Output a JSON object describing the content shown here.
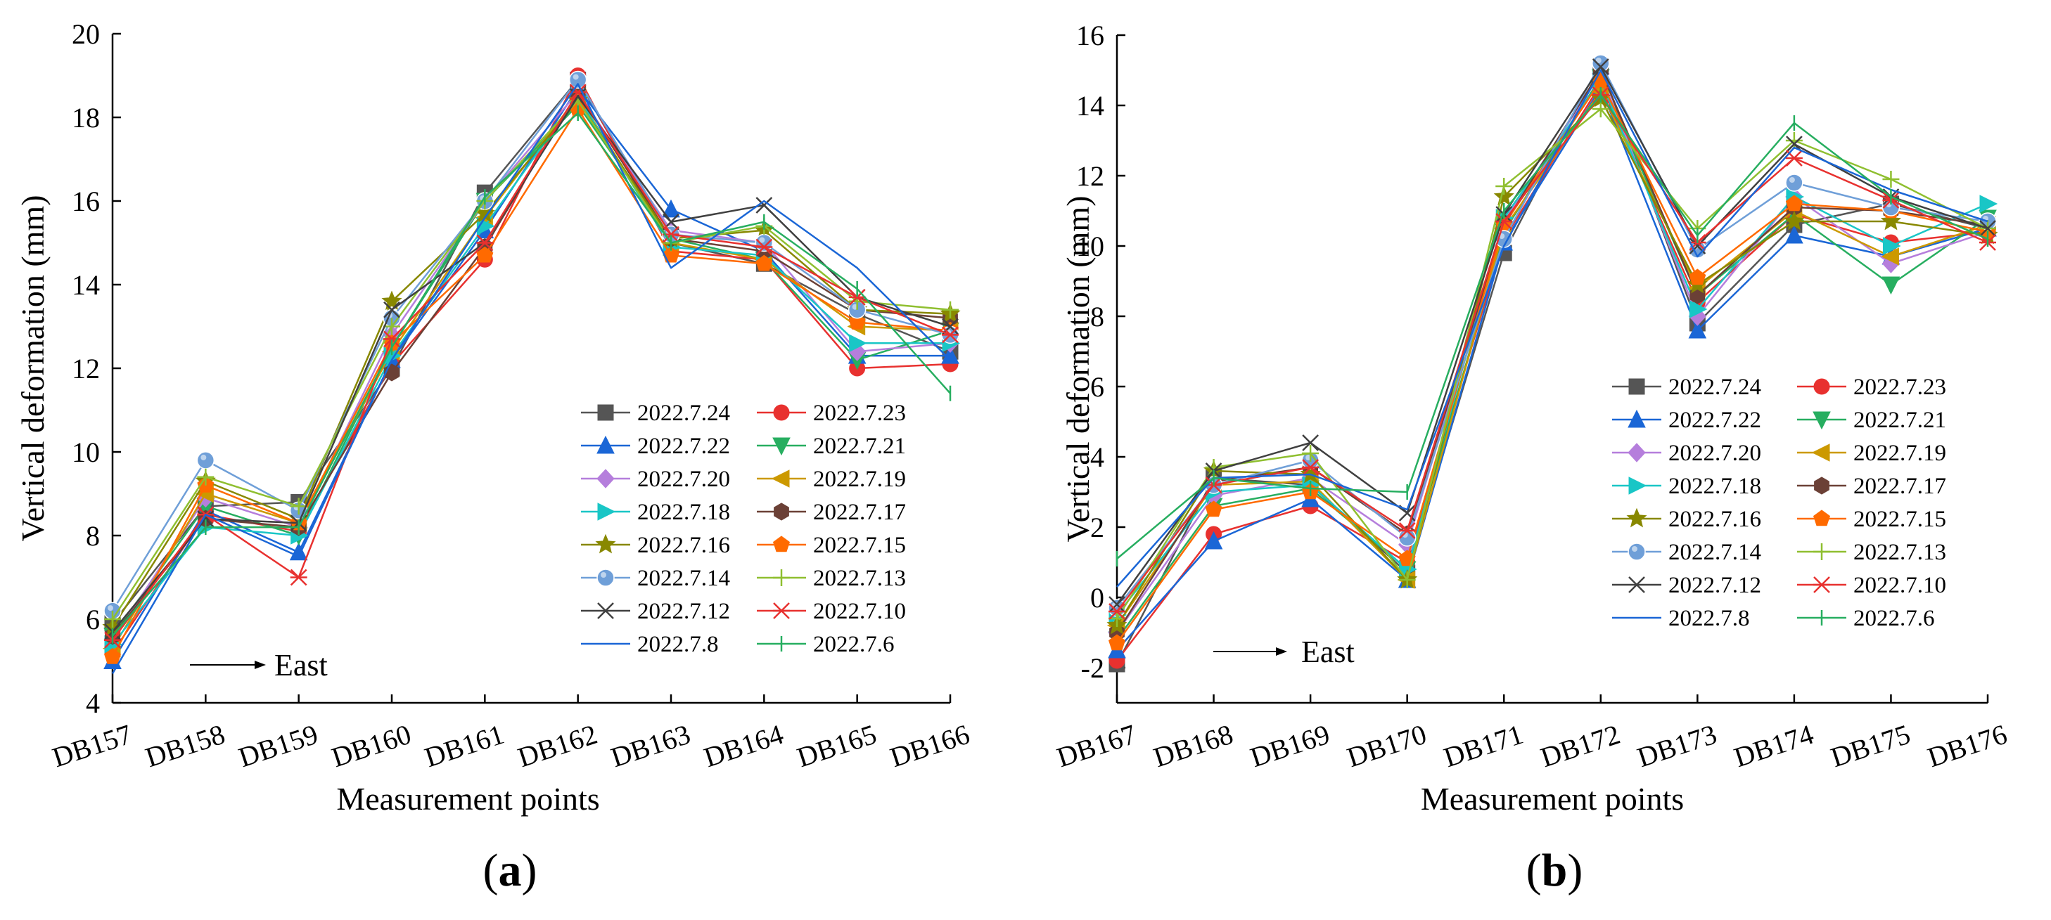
{
  "chart_data": [
    {
      "type": "line",
      "panel_label": {
        "open": "(",
        "letter": "a",
        "close": ")"
      },
      "xlabel": "Measurement points",
      "ylabel": "Vertical deformation (mm)",
      "categories": [
        "DB157",
        "DB158",
        "DB159",
        "DB160",
        "DB161",
        "DB162",
        "DB163",
        "DB164",
        "DB165",
        "DB166"
      ],
      "ylim": [
        4,
        20
      ],
      "yticks": [
        4,
        6,
        8,
        10,
        12,
        14,
        16,
        18,
        20
      ],
      "annotation": "East",
      "legend_position": "bottom-right",
      "series": [
        {
          "name": "2022.7.24",
          "color": "#555555",
          "marker": "square",
          "values": [
            5.9,
            8.7,
            8.8,
            12.0,
            16.2,
            18.9,
            15.0,
            14.5,
            13.3,
            12.4
          ]
        },
        {
          "name": "2022.7.23",
          "color": "#e8312f",
          "marker": "circle",
          "values": [
            5.2,
            8.5,
            8.1,
            12.1,
            14.6,
            19.0,
            14.8,
            14.6,
            12.0,
            12.1
          ]
        },
        {
          "name": "2022.7.22",
          "color": "#1a66d6",
          "marker": "triangle-up",
          "values": [
            5.0,
            8.6,
            7.6,
            12.2,
            15.3,
            18.7,
            15.8,
            14.8,
            12.3,
            12.3
          ]
        },
        {
          "name": "2022.7.21",
          "color": "#27ae60",
          "marker": "triangle-down",
          "values": [
            5.6,
            8.7,
            8.0,
            12.5,
            16.0,
            18.3,
            15.1,
            14.6,
            12.2,
            12.9
          ]
        },
        {
          "name": "2022.7.20",
          "color": "#b57edc",
          "marker": "diamond",
          "values": [
            5.5,
            8.9,
            8.2,
            12.8,
            16.0,
            18.6,
            15.3,
            15.0,
            12.4,
            12.6
          ]
        },
        {
          "name": "2022.7.19",
          "color": "#cc9900",
          "marker": "triangle-left",
          "values": [
            5.3,
            9.0,
            8.3,
            12.4,
            15.6,
            18.5,
            15.0,
            14.6,
            13.0,
            12.9
          ]
        },
        {
          "name": "2022.7.18",
          "color": "#19c6c6",
          "marker": "triangle-right",
          "values": [
            5.4,
            8.2,
            8.0,
            12.3,
            15.4,
            18.5,
            14.9,
            14.7,
            12.6,
            12.6
          ]
        },
        {
          "name": "2022.7.17",
          "color": "#6b4036",
          "marker": "hexagon",
          "values": [
            5.6,
            8.4,
            8.2,
            11.9,
            14.9,
            18.6,
            15.1,
            14.8,
            13.4,
            13.2
          ]
        },
        {
          "name": "2022.7.16",
          "color": "#888800",
          "marker": "star",
          "values": [
            5.8,
            9.3,
            8.4,
            13.6,
            15.7,
            18.4,
            15.1,
            15.3,
            13.4,
            13.3
          ]
        },
        {
          "name": "2022.7.15",
          "color": "#ff6a00",
          "marker": "pentagon",
          "values": [
            5.1,
            9.2,
            8.3,
            12.6,
            14.7,
            18.2,
            14.7,
            14.5,
            13.1,
            12.9
          ]
        },
        {
          "name": "2022.7.14",
          "color": "#6f9fd8",
          "marker": "sphere",
          "values": [
            6.2,
            9.8,
            8.6,
            13.2,
            16.0,
            18.9,
            15.2,
            15.0,
            13.4,
            12.8
          ]
        },
        {
          "name": "2022.7.13",
          "color": "#8fbf30",
          "marker": "plus",
          "values": [
            6.0,
            9.4,
            8.7,
            13.0,
            16.0,
            18.4,
            15.0,
            15.4,
            13.6,
            13.4
          ]
        },
        {
          "name": "2022.7.12",
          "color": "#404040",
          "marker": "cross",
          "values": [
            5.7,
            8.4,
            8.3,
            13.4,
            15.0,
            18.5,
            15.5,
            15.9,
            13.7,
            13.0
          ]
        },
        {
          "name": "2022.7.10",
          "color": "#e8312f",
          "marker": "asterisk",
          "values": [
            5.5,
            8.5,
            7.0,
            12.7,
            15.0,
            18.6,
            15.2,
            14.9,
            13.7,
            12.8
          ]
        },
        {
          "name": "2022.7.8",
          "color": "#1a66d6",
          "marker": "none",
          "values": [
            4.7,
            8.5,
            7.5,
            12.2,
            15.6,
            18.8,
            14.4,
            16.0,
            14.4,
            12.2
          ]
        },
        {
          "name": "2022.7.6",
          "color": "#27ae60",
          "marker": "tick",
          "values": [
            5.6,
            8.2,
            8.2,
            12.5,
            16.1,
            18.1,
            15.0,
            15.5,
            13.9,
            11.4
          ]
        }
      ]
    },
    {
      "type": "line",
      "panel_label": {
        "open": "(",
        "letter": "b",
        "close": ")"
      },
      "xlabel": "Measurement points",
      "ylabel": "Vertical deformation (mm)",
      "categories": [
        "DB167",
        "DB168",
        "DB169",
        "DB170",
        "DB171",
        "DB172",
        "DB173",
        "DB174",
        "DB175",
        "DB176"
      ],
      "ylim": [
        -3,
        16
      ],
      "yticks": [
        -2,
        0,
        2,
        4,
        6,
        8,
        10,
        12,
        14,
        16
      ],
      "annotation": "East",
      "legend_position": "center-right",
      "series": [
        {
          "name": "2022.7.24",
          "color": "#555555",
          "marker": "square",
          "values": [
            -1.9,
            3.4,
            3.2,
            0.7,
            9.8,
            15.1,
            7.8,
            10.6,
            11.2,
            10.5
          ]
        },
        {
          "name": "2022.7.23",
          "color": "#e8312f",
          "marker": "circle",
          "values": [
            -1.8,
            1.8,
            2.6,
            1.0,
            10.2,
            14.6,
            8.4,
            10.9,
            10.1,
            10.4
          ]
        },
        {
          "name": "2022.7.22",
          "color": "#1a66d6",
          "marker": "triangle-up",
          "values": [
            -1.5,
            1.6,
            2.8,
            0.5,
            10.1,
            14.5,
            7.6,
            10.3,
            9.7,
            10.5
          ]
        },
        {
          "name": "2022.7.21",
          "color": "#27ae60",
          "marker": "triangle-down",
          "values": [
            -1.2,
            2.6,
            3.1,
            0.8,
            10.4,
            14.8,
            8.6,
            10.9,
            8.9,
            10.8
          ]
        },
        {
          "name": "2022.7.20",
          "color": "#b57edc",
          "marker": "diamond",
          "values": [
            -1.0,
            2.9,
            3.4,
            1.5,
            10.7,
            14.9,
            8.0,
            11.4,
            9.5,
            10.4
          ]
        },
        {
          "name": "2022.7.19",
          "color": "#cc9900",
          "marker": "triangle-left",
          "values": [
            -0.8,
            3.2,
            3.3,
            0.5,
            10.5,
            14.4,
            8.8,
            11.0,
            9.7,
            10.6
          ]
        },
        {
          "name": "2022.7.18",
          "color": "#19c6c6",
          "marker": "triangle-right",
          "values": [
            -0.5,
            3.0,
            3.2,
            0.8,
            10.8,
            14.7,
            8.2,
            11.4,
            10.0,
            11.2
          ]
        },
        {
          "name": "2022.7.17",
          "color": "#6b4036",
          "marker": "hexagon",
          "values": [
            -1.0,
            3.3,
            3.7,
            1.8,
            10.6,
            15.0,
            8.6,
            11.1,
            11.0,
            10.6
          ]
        },
        {
          "name": "2022.7.16",
          "color": "#888800",
          "marker": "star",
          "values": [
            -0.8,
            3.6,
            3.5,
            0.5,
            11.4,
            14.2,
            8.9,
            10.7,
            10.7,
            10.3
          ]
        },
        {
          "name": "2022.7.15",
          "color": "#ff6a00",
          "marker": "pentagon",
          "values": [
            -1.3,
            2.5,
            3.0,
            1.1,
            10.6,
            14.7,
            9.1,
            11.2,
            11.0,
            10.4
          ]
        },
        {
          "name": "2022.7.14",
          "color": "#6f9fd8",
          "marker": "sphere",
          "values": [
            -0.3,
            3.2,
            3.9,
            1.7,
            10.2,
            15.2,
            9.9,
            11.8,
            11.1,
            10.7
          ]
        },
        {
          "name": "2022.7.13",
          "color": "#8fbf30",
          "marker": "plus",
          "values": [
            -0.6,
            3.7,
            4.1,
            0.5,
            11.7,
            13.9,
            10.5,
            13.0,
            11.9,
            10.5
          ]
        },
        {
          "name": "2022.7.12",
          "color": "#404040",
          "marker": "cross",
          "values": [
            -0.2,
            3.6,
            4.4,
            2.4,
            10.9,
            15.1,
            10.0,
            12.9,
            11.4,
            10.5
          ]
        },
        {
          "name": "2022.7.10",
          "color": "#e8312f",
          "marker": "asterisk",
          "values": [
            -0.4,
            3.2,
            3.7,
            1.9,
            10.7,
            14.3,
            10.1,
            12.5,
            11.3,
            10.1
          ]
        },
        {
          "name": "2022.7.8",
          "color": "#1a66d6",
          "marker": "none",
          "values": [
            0.3,
            3.4,
            3.5,
            2.5,
            10.0,
            15.0,
            9.7,
            12.8,
            11.6,
            10.7
          ]
        },
        {
          "name": "2022.7.6",
          "color": "#27ae60",
          "marker": "tick",
          "values": [
            1.1,
            3.4,
            3.1,
            3.0,
            11.0,
            14.3,
            10.3,
            13.5,
            11.4,
            10.2
          ]
        }
      ]
    }
  ]
}
